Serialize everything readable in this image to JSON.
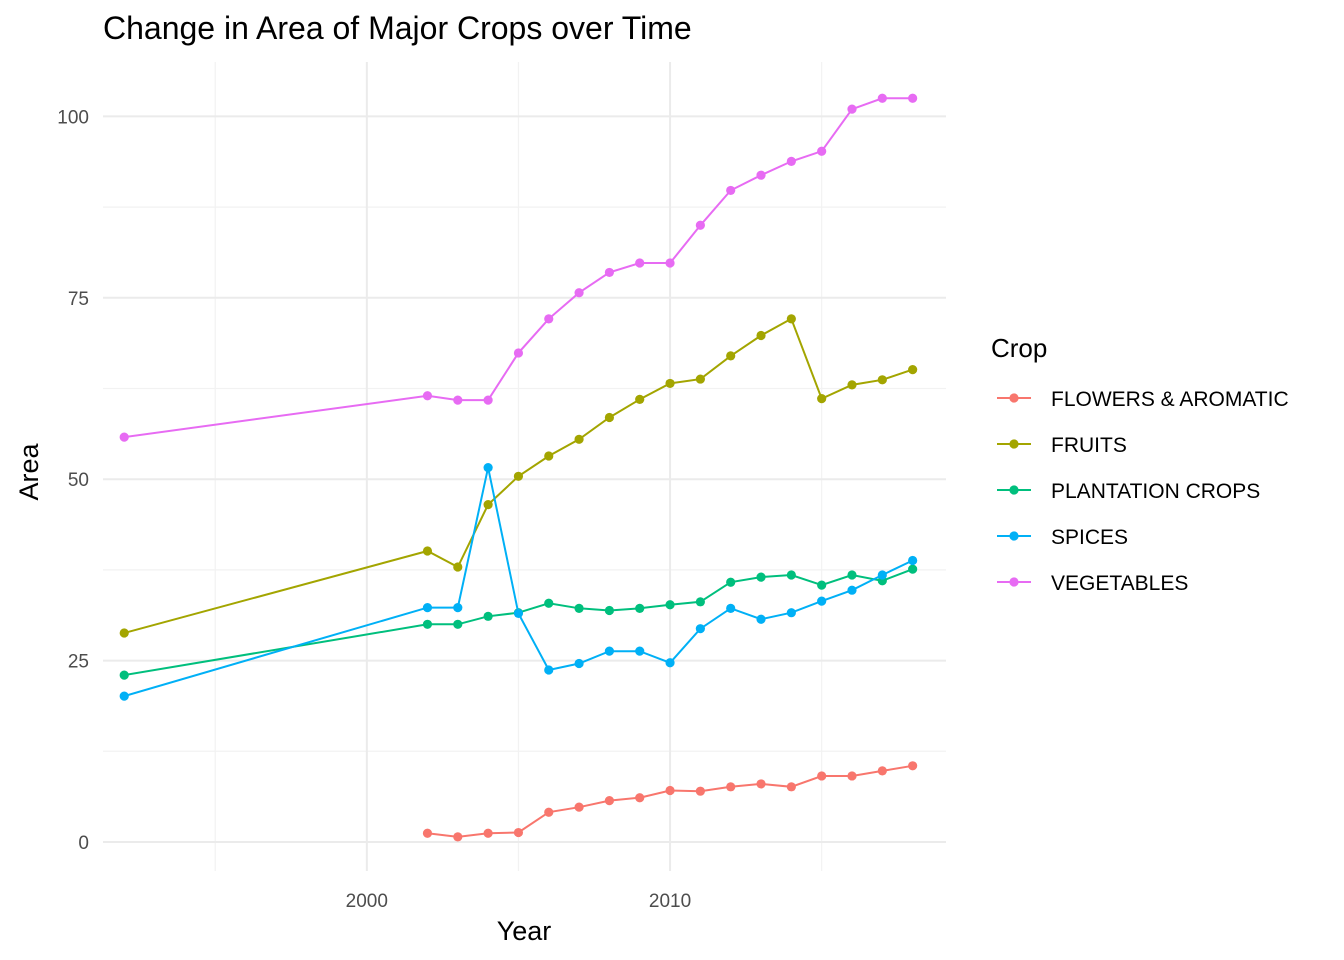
{
  "chart_data": {
    "type": "line",
    "title": "Change in Area of Major Crops over Time",
    "xlabel": "Year",
    "ylabel": "Area",
    "xlim": [
      1991.3,
      2019.1
    ],
    "ylim": [
      -4.0,
      107.5
    ],
    "x_ticks": [
      2000,
      2010
    ],
    "y_ticks": [
      0,
      25,
      50,
      75,
      100
    ],
    "grid": true,
    "legend": {
      "title": "Crop",
      "position": "right"
    },
    "series": [
      {
        "name": "FLOWERS & AROMATIC",
        "color": "#F8766D",
        "points": [
          [
            2002,
            1.2
          ],
          [
            2003,
            0.7
          ],
          [
            2004,
            1.2
          ],
          [
            2005,
            1.3
          ],
          [
            2006,
            4.1
          ],
          [
            2007,
            4.8
          ],
          [
            2008,
            5.7
          ],
          [
            2009,
            6.1
          ],
          [
            2010,
            7.1
          ],
          [
            2011,
            7.0
          ],
          [
            2012,
            7.6
          ],
          [
            2013,
            8.0
          ],
          [
            2014,
            7.6
          ],
          [
            2015,
            9.1
          ],
          [
            2016,
            9.1
          ],
          [
            2017,
            9.8
          ],
          [
            2018,
            10.5
          ]
        ]
      },
      {
        "name": "FRUITS",
        "color": "#A3A500",
        "points": [
          [
            1992,
            28.8
          ],
          [
            2002,
            40.1
          ],
          [
            2003,
            37.9
          ],
          [
            2004,
            46.5
          ],
          [
            2005,
            50.4
          ],
          [
            2006,
            53.2
          ],
          [
            2007,
            55.5
          ],
          [
            2008,
            58.5
          ],
          [
            2009,
            61.0
          ],
          [
            2010,
            63.2
          ],
          [
            2011,
            63.8
          ],
          [
            2012,
            67.0
          ],
          [
            2013,
            69.8
          ],
          [
            2014,
            72.1
          ],
          [
            2015,
            61.1
          ],
          [
            2016,
            63.0
          ],
          [
            2017,
            63.7
          ],
          [
            2018,
            65.1
          ]
        ]
      },
      {
        "name": "PLANTATION CROPS",
        "color": "#00BF7D",
        "points": [
          [
            1992,
            23.0
          ],
          [
            2002,
            30.0
          ],
          [
            2003,
            30.0
          ],
          [
            2004,
            31.1
          ],
          [
            2005,
            31.6
          ],
          [
            2006,
            32.9
          ],
          [
            2007,
            32.2
          ],
          [
            2008,
            31.9
          ],
          [
            2009,
            32.2
          ],
          [
            2010,
            32.7
          ],
          [
            2011,
            33.1
          ],
          [
            2012,
            35.8
          ],
          [
            2013,
            36.5
          ],
          [
            2014,
            36.8
          ],
          [
            2015,
            35.4
          ],
          [
            2016,
            36.8
          ],
          [
            2017,
            36.0
          ],
          [
            2018,
            37.6
          ]
        ]
      },
      {
        "name": "SPICES",
        "color": "#00B0F6",
        "points": [
          [
            1992,
            20.1
          ],
          [
            2002,
            32.3
          ],
          [
            2003,
            32.3
          ],
          [
            2004,
            51.6
          ],
          [
            2005,
            31.5
          ],
          [
            2006,
            23.7
          ],
          [
            2007,
            24.6
          ],
          [
            2008,
            26.3
          ],
          [
            2009,
            26.3
          ],
          [
            2010,
            24.7
          ],
          [
            2011,
            29.4
          ],
          [
            2012,
            32.2
          ],
          [
            2013,
            30.7
          ],
          [
            2014,
            31.6
          ],
          [
            2015,
            33.2
          ],
          [
            2016,
            34.7
          ],
          [
            2017,
            36.8
          ],
          [
            2018,
            38.8
          ]
        ]
      },
      {
        "name": "VEGETABLES",
        "color": "#E76BF3",
        "points": [
          [
            1992,
            55.8
          ],
          [
            2002,
            61.5
          ],
          [
            2003,
            60.9
          ],
          [
            2004,
            60.9
          ],
          [
            2005,
            67.4
          ],
          [
            2006,
            72.1
          ],
          [
            2007,
            75.7
          ],
          [
            2008,
            78.5
          ],
          [
            2009,
            79.8
          ],
          [
            2010,
            79.8
          ],
          [
            2011,
            85.0
          ],
          [
            2012,
            89.8
          ],
          [
            2013,
            91.9
          ],
          [
            2014,
            93.8
          ],
          [
            2015,
            95.2
          ],
          [
            2016,
            101.0
          ],
          [
            2017,
            102.5
          ],
          [
            2018,
            102.5
          ]
        ]
      }
    ]
  }
}
